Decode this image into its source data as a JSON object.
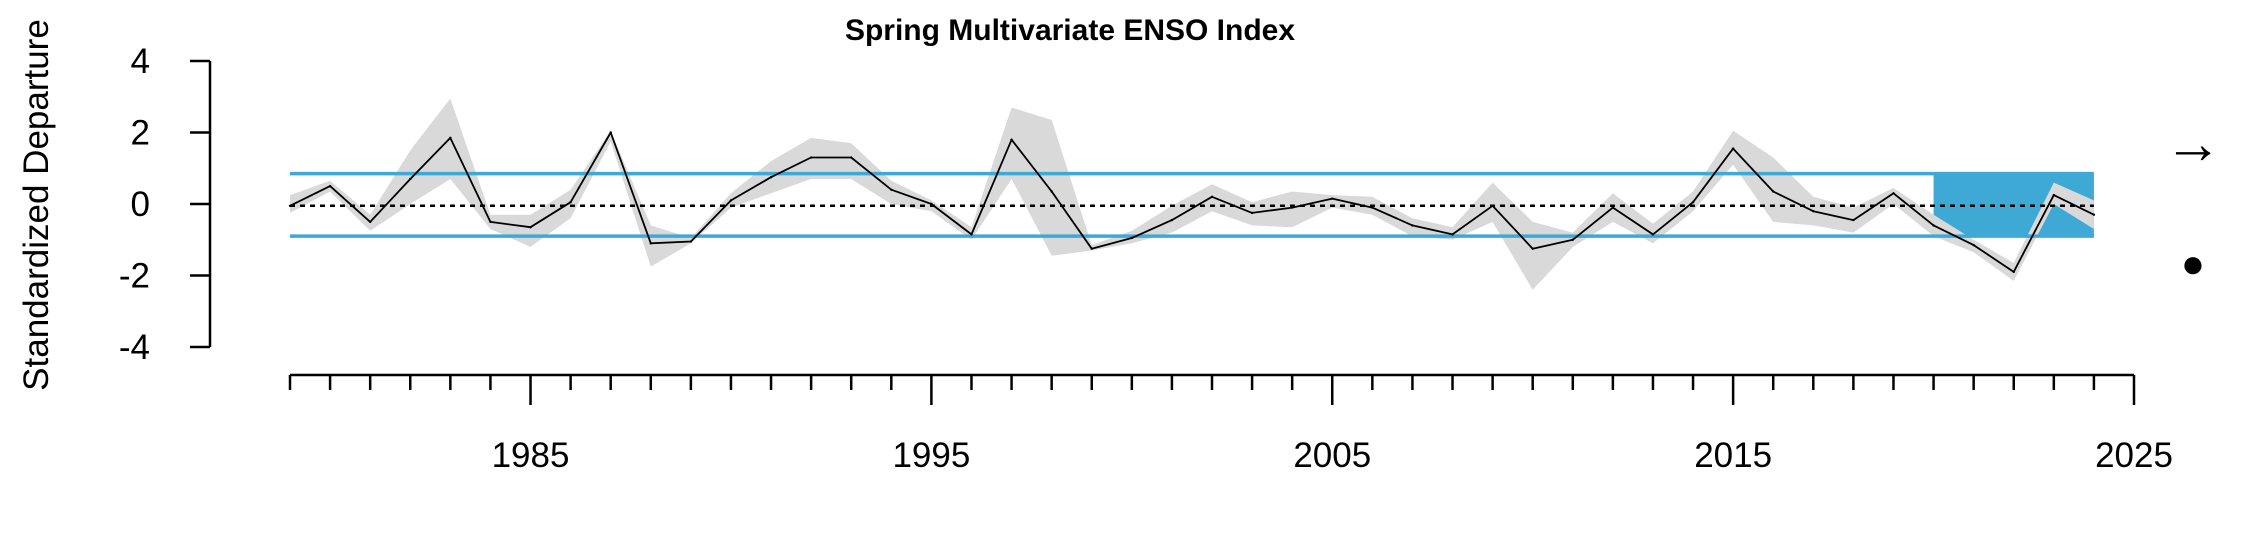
{
  "chart_data": {
    "type": "line",
    "title": "Spring Multivariate ENSO Index",
    "xlabel": "",
    "ylabel": "Standardized Departure",
    "xlim": [
      1979,
      2025
    ],
    "ylim": [
      -4,
      4
    ],
    "x_ticks": [
      1985,
      1995,
      2005,
      2015,
      2025
    ],
    "y_ticks": [
      -4,
      -2,
      0,
      2,
      4
    ],
    "series": [
      {
        "x": [
          1979,
          1980,
          1981,
          1982,
          1983,
          1984,
          1985,
          1986,
          1987,
          1988,
          1989,
          1990,
          1991,
          1992,
          1993,
          1994,
          1995,
          1996,
          1997,
          1998,
          1999,
          2000,
          2001,
          2002,
          2003,
          2004,
          2005,
          2006,
          2007,
          2008,
          2009,
          2010,
          2011,
          2012,
          2013,
          2014,
          2015,
          2016,
          2017,
          2018,
          2019,
          2020,
          2021,
          2022,
          2023,
          2024
        ],
        "values": [
          -0.05,
          0.5,
          -0.5,
          0.7,
          1.85,
          -0.5,
          -0.65,
          0.05,
          2.0,
          -1.1,
          -1.05,
          0.1,
          0.75,
          1.3,
          1.3,
          0.4,
          0.0,
          -0.85,
          1.8,
          0.35,
          -1.25,
          -0.95,
          -0.45,
          0.2,
          -0.25,
          -0.1,
          0.15,
          -0.1,
          -0.6,
          -0.85,
          -0.05,
          -1.25,
          -1.0,
          -0.1,
          -0.85,
          0.05,
          1.55,
          0.35,
          -0.2,
          -0.45,
          0.3,
          -0.6,
          -1.15,
          -1.9,
          0.25,
          -0.3
        ],
        "lower": [
          -0.25,
          0.35,
          -0.75,
          0.0,
          0.7,
          -0.7,
          -1.2,
          -0.4,
          1.75,
          -1.75,
          -1.1,
          -0.1,
          0.3,
          0.7,
          0.7,
          0.0,
          -0.2,
          -1.0,
          0.7,
          -1.45,
          -1.3,
          -1.1,
          -0.8,
          -0.2,
          -0.6,
          -0.65,
          -0.1,
          -0.3,
          -0.9,
          -1.0,
          -0.5,
          -2.4,
          -1.2,
          -0.5,
          -1.1,
          -0.2,
          1.1,
          -0.5,
          -0.6,
          -0.8,
          0.0,
          -0.9,
          -1.35,
          -2.15,
          0.0,
          -0.7
        ],
        "upper": [
          0.25,
          0.65,
          -0.3,
          1.5,
          2.95,
          -0.3,
          -0.3,
          0.4,
          2.05,
          -0.6,
          -0.95,
          0.3,
          1.2,
          1.85,
          1.7,
          0.65,
          0.1,
          -0.65,
          2.7,
          2.35,
          -1.15,
          -0.75,
          -0.05,
          0.55,
          0.05,
          0.35,
          0.25,
          0.2,
          -0.4,
          -0.65,
          0.6,
          -0.5,
          -0.8,
          0.3,
          -0.55,
          0.35,
          2.05,
          1.3,
          0.2,
          -0.1,
          0.45,
          -0.3,
          -1.0,
          -1.65,
          0.6,
          0.1
        ]
      }
    ],
    "reference_lines": {
      "mean": -0.05,
      "upper": 0.85,
      "lower": -0.9
    },
    "highlight_x_range": [
      2020,
      2024
    ],
    "trend_symbol": "→",
    "status_symbol": "●",
    "colors": {
      "band": "#3fa9d6",
      "ribbon": "#d9d9d9",
      "line": "#000000",
      "axis": "#000000"
    }
  }
}
